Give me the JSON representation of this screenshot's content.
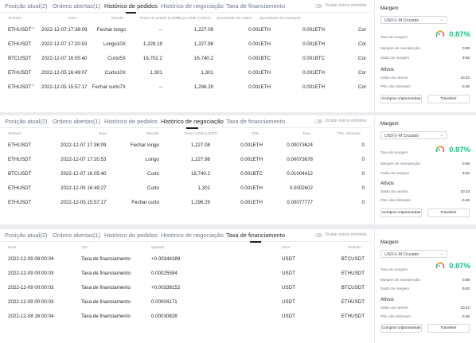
{
  "tabs": [
    "Posição atual(2)",
    "Ordens abertas(1)",
    "Histórico de pedidos",
    "Histórico de negociação",
    "Taxa de financiamento"
  ],
  "hide_toggle_label": "Ocultar outros símbolos",
  "orders": {
    "headers": [
      "Símbolo",
      "Hora",
      "Direção",
      "Preço do pedido (USDT)",
      "Preço médio (USDT)",
      "Quantidade da ordem",
      "Quantidade da transação"
    ],
    "rows": [
      {
        "symbol": "ETHUSDT",
        "share": true,
        "time": "2022-12-07 17:38:09",
        "side": "Fechar longo",
        "order_price": "--",
        "avg_price": "1,227.08",
        "qty": "0.001ETH",
        "filled": "0.001ETH",
        "extra": "Cor"
      },
      {
        "symbol": "ETHUSDT",
        "share": false,
        "time": "2022-12-07 17:20:53",
        "side": "Longo10X",
        "order_price": "1,228.19",
        "avg_price": "1,227.98",
        "qty": "0.001ETH",
        "filled": "0.001ETH",
        "extra": "Cor"
      },
      {
        "symbol": "BTCUSDT",
        "share": false,
        "time": "2022-12-07 16:05:40",
        "side": "Curto5X",
        "order_price": "16,702.2",
        "avg_price": "16,740.2",
        "qty": "0.001BTC",
        "filled": "0.001BTC",
        "extra": "Cor"
      },
      {
        "symbol": "ETHUSDT",
        "share": false,
        "time": "2022-12-05 16:49:07",
        "side": "Curto10X",
        "order_price": "1,301",
        "avg_price": "1,301",
        "qty": "0.001ETH",
        "filled": "0.001ETH",
        "extra": "Cor"
      },
      {
        "symbol": "ETHUSDT",
        "share": true,
        "time": "2022-12-05 15:57:17",
        "side": "Fechar curto7X",
        "order_price": "--",
        "avg_price": "1,296.29",
        "qty": "0.001ETH",
        "filled": "0.001ETH",
        "extra": "Cor"
      }
    ]
  },
  "trades": {
    "headers": [
      "Símbolo",
      "Hora",
      "Direção",
      "Preço médio(USDT)",
      "Oldo",
      "Taxa",
      "PNL efetivado"
    ],
    "rows": [
      {
        "symbol": "ETHUSDT",
        "time": "2022-12-07 17:38:09",
        "side": "Fechar longo",
        "price": "1,227.08",
        "qty": "0.001ETH",
        "fee": "0.00073624",
        "pnl": "0"
      },
      {
        "symbol": "ETHUSDT",
        "time": "2022-12-07 17:20:53",
        "side": "Longo",
        "price": "1,227.98",
        "qty": "0.001ETH",
        "fee": "0.00073678",
        "pnl": "0"
      },
      {
        "symbol": "BTCUSDT",
        "time": "2022-12-07 16:05:40",
        "side": "Curto",
        "price": "16,740.2",
        "qty": "0.001BTC",
        "fee": "0.01004412",
        "pnl": "0"
      },
      {
        "symbol": "ETHUSDT",
        "time": "2022-12-05 16:49:27",
        "side": "Curto",
        "price": "1,301",
        "qty": "0.001ETH",
        "fee": "0.0002602",
        "pnl": "0"
      },
      {
        "symbol": "ETHUSDT",
        "time": "2022-12-05 15:57:17",
        "side": "Fechar curto",
        "price": "1,296.29",
        "qty": "0.001ETH",
        "fee": "0.00077777",
        "pnl": "0"
      }
    ]
  },
  "funding": {
    "headers": [
      "Hora",
      "Tipo",
      "Quantia",
      "Ativo",
      "Símbolo"
    ],
    "rows": [
      {
        "time": "2022-12-09 08:00:04",
        "type": "Taxa de financiamento",
        "amount": "+0.00344289",
        "asset": "USDT",
        "symbol": "BTCUSDT"
      },
      {
        "time": "2022-12-09 00:00:03",
        "type": "Taxa de financiamento",
        "amount": "0.00025594",
        "asset": "USDT",
        "symbol": "ETHUSDT"
      },
      {
        "time": "2022-12-09 00:00:03",
        "type": "Taxa de financiamento",
        "amount": "+0.00338152",
        "asset": "USDT",
        "symbol": "BTCUSDT"
      },
      {
        "time": "2022-12-09 00:00:03",
        "type": "Taxa de financiamento",
        "amount": "0.00004171",
        "asset": "USDT",
        "symbol": "ETHUSDT"
      },
      {
        "time": "2022-12-08 16:00:04",
        "type": "Taxa de financiamento",
        "amount": "0.00030828",
        "asset": "USDT",
        "symbol": "ETHUSDT"
      }
    ]
  },
  "margin": {
    "title": "Margem",
    "select": "USDⓈ-M Cruzado",
    "ratio_label": "Taxa de margem",
    "ratio": "0.87%",
    "maintenance_label": "Margem de manutenção",
    "maintenance": "0.08",
    "balance_label": "Saldo de margem",
    "balance": "9.62",
    "assets_title": "Ativos",
    "wallet_label": "Saldo da carteira",
    "wallet": "10.22",
    "pnl_label": "PNL não efetivado",
    "pnl": "-0.45",
    "buy_button": "Comprar criptomoedas",
    "transfer_button": "Transferir",
    "accent": "#0ecb81"
  }
}
